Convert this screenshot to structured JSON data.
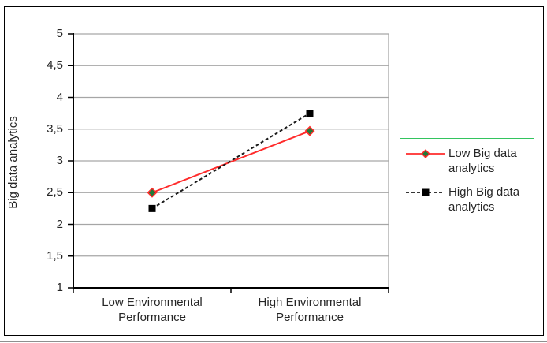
{
  "chart_data": {
    "type": "line",
    "title": "",
    "xlabel": "",
    "ylabel": "Big data analytics",
    "categories": [
      "Low Environmental Performance",
      "High Environmental Performance"
    ],
    "series": [
      {
        "name": "Low Big data analytics",
        "values": [
          2.5,
          3.47
        ],
        "line_color": "#FF2B2B",
        "line_style": "solid",
        "marker": "diamond",
        "marker_fill": "#217A38",
        "marker_border": "#FF2B2B"
      },
      {
        "name": "High Big data analytics",
        "values": [
          2.25,
          3.75
        ],
        "line_color": "#1a1a1a",
        "line_style": "dashed",
        "marker": "square",
        "marker_fill": "#000000",
        "marker_border": "#000000"
      }
    ],
    "ylim": [
      1,
      5
    ],
    "y_ticks": [
      {
        "value": 5,
        "label": "5"
      },
      {
        "value": 4.5,
        "label": "4,5"
      },
      {
        "value": 4,
        "label": "4"
      },
      {
        "value": 3.5,
        "label": "3,5"
      },
      {
        "value": 3,
        "label": "3"
      },
      {
        "value": 2.5,
        "label": "2,5"
      },
      {
        "value": 2,
        "label": "2"
      },
      {
        "value": 1.5,
        "label": "1,5"
      },
      {
        "value": 1,
        "label": "1"
      }
    ],
    "decimal_separator": ",",
    "grid": "horizontal",
    "legend_position": "right"
  },
  "colors": {
    "gridline": "#A6A6A6",
    "axis": "#000000",
    "frame_border": "#000000",
    "legend_border": "#33C45E",
    "background": "#FFFFFF"
  }
}
